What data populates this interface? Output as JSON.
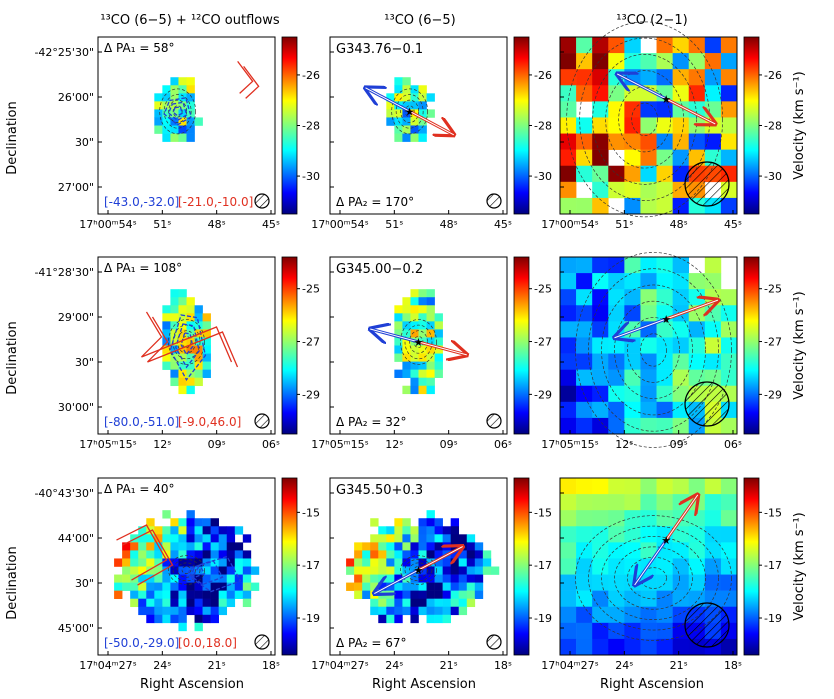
{
  "column_titles": [
    "¹³CO (6−5) + ¹²CO outflows",
    "¹³CO (6−5)",
    "¹³CO (2−1)"
  ],
  "xlabel": "Right Ascension",
  "ylabel": "Declination",
  "cbar_label": "Velocity (km s⁻¹)",
  "chart_data": [
    {
      "type": "heatmap",
      "source": "G343.76−0.1",
      "dpa1": "Δ PA₁ = 58°",
      "dpa2": "Δ PA₂ = 170°",
      "blue_range": "[-43.0,-32.0]",
      "red_range": "[-21.0,-10.0]",
      "xticks": [
        "17ʰ00ᵐ54ˢ",
        "51ˢ",
        "48ˢ",
        "45ˢ"
      ],
      "yticks": [
        "-42°25'30\"",
        "26'00\"",
        "30\"",
        "27'00\""
      ],
      "cbar_ticks": [
        "-26",
        "-28",
        "-30"
      ],
      "cbar_range": [
        -31.5,
        -24.5
      ]
    },
    {
      "type": "heatmap",
      "source": "G345.00−0.2",
      "dpa1": "Δ PA₁ = 108°",
      "dpa2": "Δ PA₂ = 32°",
      "blue_range": "[-80.0,-51.0]",
      "red_range": "[-9.0,46.0]",
      "xticks": [
        "17ʰ05ᵐ15ˢ",
        "12ˢ",
        "09ˢ",
        "06ˢ"
      ],
      "yticks": [
        "-41°28'30\"",
        "29'00\"",
        "30\"",
        "30'00\""
      ],
      "cbar_ticks": [
        "-25",
        "-27",
        "-29"
      ],
      "cbar_range": [
        -30.5,
        -23.8
      ]
    },
    {
      "type": "heatmap",
      "source": "G345.50+0.3",
      "dpa1": "Δ PA₁ = 40°",
      "dpa2": "Δ PA₂ = 67°",
      "blue_range": "[-50.0,-29.0]",
      "red_range": "[0.0,18.0]",
      "xticks": [
        "17ʰ04ᵐ27ˢ",
        "24ˢ",
        "21ˢ",
        "18ˢ"
      ],
      "yticks": [
        "-40°43'30\"",
        "44'00\"",
        "30\"",
        "45'00\""
      ],
      "cbar_ticks": [
        "-15",
        "-17",
        "-19"
      ],
      "cbar_range": [
        -20.4,
        -13.7
      ]
    }
  ],
  "colors": {
    "blue_outflow": "#1f3fd6",
    "red_outflow": "#e03020"
  }
}
